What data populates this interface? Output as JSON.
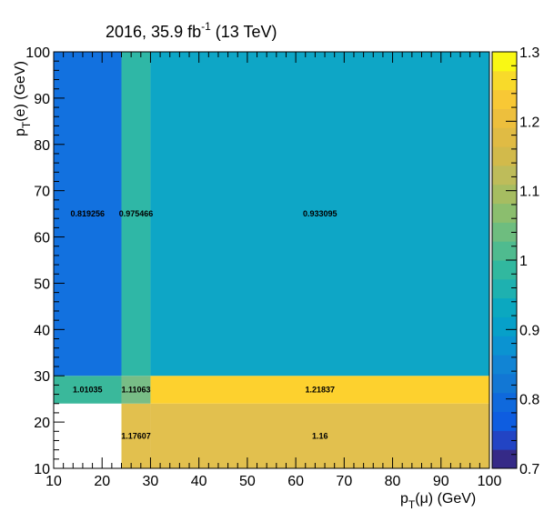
{
  "chart_data": {
    "type": "heatmap",
    "title": {
      "prefix": "2016, 35.9 fb",
      "superscript": "-1",
      "suffix": " (13 TeV)"
    },
    "xlabel": {
      "main": "p",
      "sub": "T",
      "rest": "(μ) (GeV)"
    },
    "ylabel": {
      "main": "p",
      "sub": "T",
      "rest": "(e) (GeV)"
    },
    "xlim": [
      10,
      100
    ],
    "ylim": [
      10,
      100
    ],
    "x_edges": [
      10,
      24,
      30,
      100
    ],
    "y_edges": [
      10,
      24,
      30,
      100
    ],
    "x_ticks": [
      10,
      20,
      30,
      40,
      50,
      60,
      70,
      80,
      90,
      100
    ],
    "y_ticks": [
      10,
      20,
      30,
      40,
      50,
      60,
      70,
      80,
      90,
      100
    ],
    "x_tick_labels": [
      "10",
      "20",
      "30",
      "40",
      "50",
      "60",
      "70",
      "80",
      "90",
      "100"
    ],
    "y_tick_labels": [
      "10",
      "20",
      "30",
      "40",
      "50",
      "60",
      "70",
      "80",
      "90",
      "100"
    ],
    "cells": [
      {
        "xi": 1,
        "yi": 0,
        "value": 1.17607,
        "label": "1.17607"
      },
      {
        "xi": 2,
        "yi": 0,
        "value": 1.16,
        "label": "1.16"
      },
      {
        "xi": 0,
        "yi": 1,
        "value": 1.01035,
        "label": "1.01035"
      },
      {
        "xi": 1,
        "yi": 1,
        "value": 1.11063,
        "label": "1.11063"
      },
      {
        "xi": 2,
        "yi": 1,
        "value": 1.21837,
        "label": "1.21837"
      },
      {
        "xi": 0,
        "yi": 2,
        "value": 0.819256,
        "label": "0.819256"
      },
      {
        "xi": 1,
        "yi": 2,
        "value": 0.975466,
        "label": "0.975466"
      },
      {
        "xi": 2,
        "yi": 2,
        "value": 0.933095,
        "label": "0.933095"
      }
    ],
    "colorbar": {
      "range": [
        0.7,
        1.3
      ],
      "ticks": [
        0.7,
        0.8,
        0.9,
        1.0,
        1.1,
        1.2,
        1.3
      ],
      "tick_labels": [
        "0.7",
        "0.8",
        "0.9",
        "1",
        "1.1",
        "1.2",
        "1.3"
      ],
      "palette": [
        "#352a87",
        "#2244c4",
        "#0e5de0",
        "#0f69dc",
        "#1277d4",
        "#1184d4",
        "#0b93d1",
        "#07a0c9",
        "#0ba8c0",
        "#1eb1b0",
        "#31b89f",
        "#4fbb8f",
        "#6ebd7f",
        "#8bbe6e",
        "#a6bd61",
        "#bebc5a",
        "#d2ba4b",
        "#e0bb44",
        "#edbf3d",
        "#f8c835",
        "#f8da2a",
        "#f9f814"
      ],
      "colors": [
        "#352a87",
        "#1f4bd0",
        "#0d6ae0",
        "#1583d6",
        "#0aa3cc",
        "#1cb1b2",
        "#52bb8c",
        "#98bc67",
        "#c9bb54",
        "#e9be44",
        "#fbd630",
        "#f9f814"
      ],
      "cell_colors": {
        "1.17607": "#e2c04e",
        "1.16": "#e2c04e",
        "1.01035": "#3ab89b",
        "1.11063": "#78bd86",
        "1.21837": "#fdd12e",
        "0.819256": "#1271df",
        "0.975466": "#2fb7a6",
        "0.933095": "#0ea6c6"
      }
    }
  }
}
